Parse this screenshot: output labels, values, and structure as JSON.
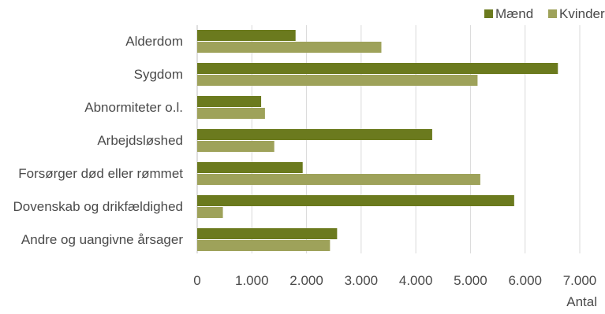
{
  "chart_data": {
    "type": "bar",
    "orientation": "horizontal",
    "categories": [
      "Alderdom",
      "Sygdom",
      "Abnormiteter o.l.",
      "Arbejdsløshed",
      "Forsørger død eller rømmet",
      "Dovenskab og drikfældighed",
      "Andre og uangivne årsager"
    ],
    "series": [
      {
        "name": "Mænd",
        "color": "#6b7a1e",
        "values": [
          1800,
          6600,
          1170,
          4300,
          1930,
          5800,
          2560
        ]
      },
      {
        "name": "Kvinder",
        "color": "#9ea25a",
        "values": [
          3370,
          5130,
          1240,
          1410,
          5180,
          470,
          2430
        ]
      }
    ],
    "x_ticks": [
      "0",
      "1.000",
      "2.000",
      "3.000",
      "4.000",
      "5.000",
      "6.000",
      "7.000"
    ],
    "xlim": [
      0,
      7000
    ],
    "xlabel": "Antal",
    "ylabel": "",
    "title": "",
    "grid": "vertical",
    "legend_position": "top-right"
  }
}
